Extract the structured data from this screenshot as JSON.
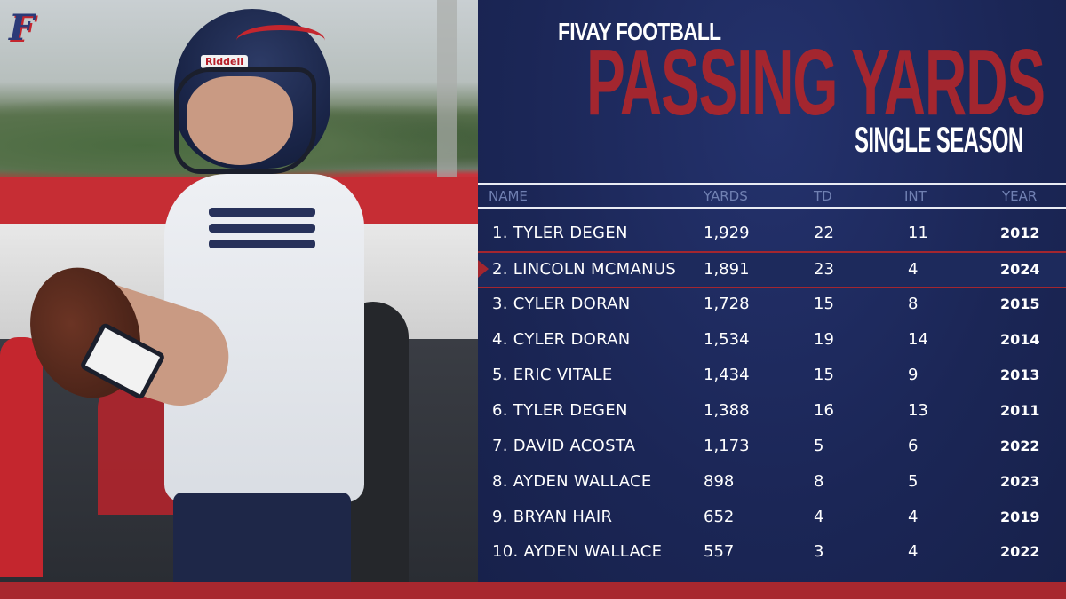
{
  "logo": {
    "text": "F"
  },
  "photo": {
    "helmet_brand": "Riddell"
  },
  "header": {
    "kicker": "FIVAY FOOTBALL",
    "title": "PASSING YARDS",
    "subtitle": "SINGLE SEASON"
  },
  "table": {
    "columns": [
      "NAME",
      "YARDS",
      "TD",
      "INT",
      "YEAR"
    ],
    "highlight_row": 1,
    "rows": [
      {
        "name": "1. TYLER DEGEN",
        "yards": "1,929",
        "td": "22",
        "int": "11",
        "year": "2012"
      },
      {
        "name": "2. LINCOLN MCMANUS",
        "yards": "1,891",
        "td": "23",
        "int": "4",
        "year": "2024"
      },
      {
        "name": "3. CYLER DORAN",
        "yards": "1,728",
        "td": "15",
        "int": "8",
        "year": "2015"
      },
      {
        "name": "4. CYLER DORAN",
        "yards": "1,534",
        "td": "19",
        "int": "14",
        "year": "2014"
      },
      {
        "name": "5. ERIC VITALE",
        "yards": "1,434",
        "td": "15",
        "int": "9",
        "year": "2013"
      },
      {
        "name": "6. TYLER DEGEN",
        "yards": "1,388",
        "td": "16",
        "int": "13",
        "year": "2011"
      },
      {
        "name": "7. DAVID ACOSTA",
        "yards": "1,173",
        "td": "5",
        "int": "6",
        "year": "2022"
      },
      {
        "name": "8. AYDEN WALLACE",
        "yards": "898",
        "td": "8",
        "int": "5",
        "year": "2023"
      },
      {
        "name": "9. BRYAN HAIR",
        "yards": "652",
        "td": "4",
        "int": "4",
        "year": "2019"
      },
      {
        "name": "10. AYDEN WALLACE",
        "yards": "557",
        "td": "3",
        "int": "4",
        "year": "2022"
      }
    ]
  },
  "colors": {
    "navy": "#1b2656",
    "red": "#a3262f",
    "header_gray": "#7080b2"
  }
}
